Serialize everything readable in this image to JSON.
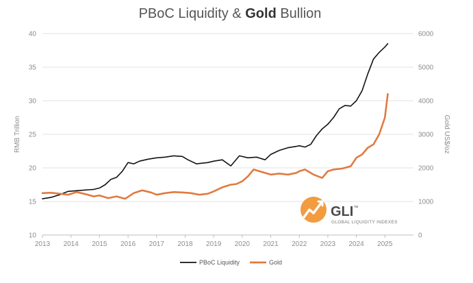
{
  "chart_data": {
    "type": "line",
    "title": "PBoC Liquidity & Gold Bullion",
    "title_parts": [
      "PBoC Liquidity & ",
      "Gold",
      " Bullion"
    ],
    "xlabel": "",
    "ylabel_left": "RMB Trillion",
    "ylabel_right": "Gold US$/oz",
    "xlim": [
      2013,
      2026
    ],
    "ylim_left": [
      10,
      40
    ],
    "ylim_right": [
      0,
      6000
    ],
    "x_ticks": [
      "2013",
      "2014",
      "2015",
      "2016",
      "2017",
      "2018",
      "2019",
      "2020",
      "2021",
      "2022",
      "2023",
      "2024",
      "2025"
    ],
    "y_left_ticks": [
      "10",
      "15",
      "20",
      "25",
      "30",
      "35",
      "40"
    ],
    "y_right_ticks": [
      "0",
      "1000",
      "2000",
      "3000",
      "4000",
      "5000",
      "6000"
    ],
    "grid": true,
    "legend_position": "bottom-center",
    "series": [
      {
        "name": "PBoC Liquidity",
        "axis": "left",
        "color": "#111111",
        "x": [
          2013.0,
          2013.3,
          2013.6,
          2013.9,
          2014.2,
          2014.5,
          2014.8,
          2015.0,
          2015.2,
          2015.4,
          2015.6,
          2015.8,
          2016.0,
          2016.2,
          2016.4,
          2016.7,
          2017.0,
          2017.3,
          2017.6,
          2017.9,
          2018.1,
          2018.4,
          2018.8,
          2019.0,
          2019.3,
          2019.6,
          2019.9,
          2020.2,
          2020.5,
          2020.8,
          2021.0,
          2021.3,
          2021.6,
          2021.9,
          2022.0,
          2022.2,
          2022.4,
          2022.6,
          2022.8,
          2023.0,
          2023.2,
          2023.4,
          2023.6,
          2023.8,
          2024.0,
          2024.2,
          2024.4,
          2024.6,
          2024.8,
          2025.0,
          2025.1
        ],
        "y": [
          15.4,
          15.6,
          16.0,
          16.5,
          16.6,
          16.7,
          16.8,
          17.0,
          17.5,
          18.3,
          18.6,
          19.5,
          20.8,
          20.6,
          21.0,
          21.3,
          21.5,
          21.6,
          21.8,
          21.7,
          21.2,
          20.6,
          20.8,
          21.0,
          21.2,
          20.3,
          21.8,
          21.5,
          21.6,
          21.2,
          22.0,
          22.6,
          23.0,
          23.2,
          23.3,
          23.1,
          23.5,
          24.8,
          25.8,
          26.5,
          27.5,
          28.8,
          29.3,
          29.2,
          30.0,
          31.5,
          34.0,
          36.2,
          37.2,
          38.0,
          38.5
        ]
      },
      {
        "name": "Gold",
        "axis": "right",
        "color": "#e07a3f",
        "x": [
          2013.0,
          2013.3,
          2013.6,
          2013.9,
          2014.2,
          2014.5,
          2014.8,
          2015.0,
          2015.3,
          2015.6,
          2015.9,
          2016.2,
          2016.5,
          2016.8,
          2017.0,
          2017.3,
          2017.6,
          2017.9,
          2018.2,
          2018.5,
          2018.8,
          2019.0,
          2019.3,
          2019.6,
          2019.8,
          2020.0,
          2020.2,
          2020.4,
          2020.6,
          2020.8,
          2021.0,
          2021.3,
          2021.6,
          2021.9,
          2022.0,
          2022.2,
          2022.5,
          2022.8,
          2023.0,
          2023.2,
          2023.5,
          2023.8,
          2024.0,
          2024.2,
          2024.4,
          2024.6,
          2024.8,
          2025.0,
          2025.1
        ],
        "y": [
          1250,
          1260,
          1230,
          1200,
          1280,
          1220,
          1150,
          1180,
          1100,
          1150,
          1080,
          1250,
          1330,
          1270,
          1200,
          1250,
          1280,
          1270,
          1250,
          1200,
          1230,
          1300,
          1420,
          1500,
          1520,
          1600,
          1750,
          1950,
          1900,
          1850,
          1800,
          1830,
          1800,
          1850,
          1900,
          1950,
          1800,
          1700,
          1900,
          1950,
          1980,
          2050,
          2300,
          2400,
          2600,
          2700,
          3000,
          3500,
          4200
        ]
      }
    ],
    "annotations": {
      "logo_text": "GLI",
      "logo_tm": "™",
      "logo_subtitle": "GLOBAL LIQUIDITY INDEXES"
    }
  }
}
